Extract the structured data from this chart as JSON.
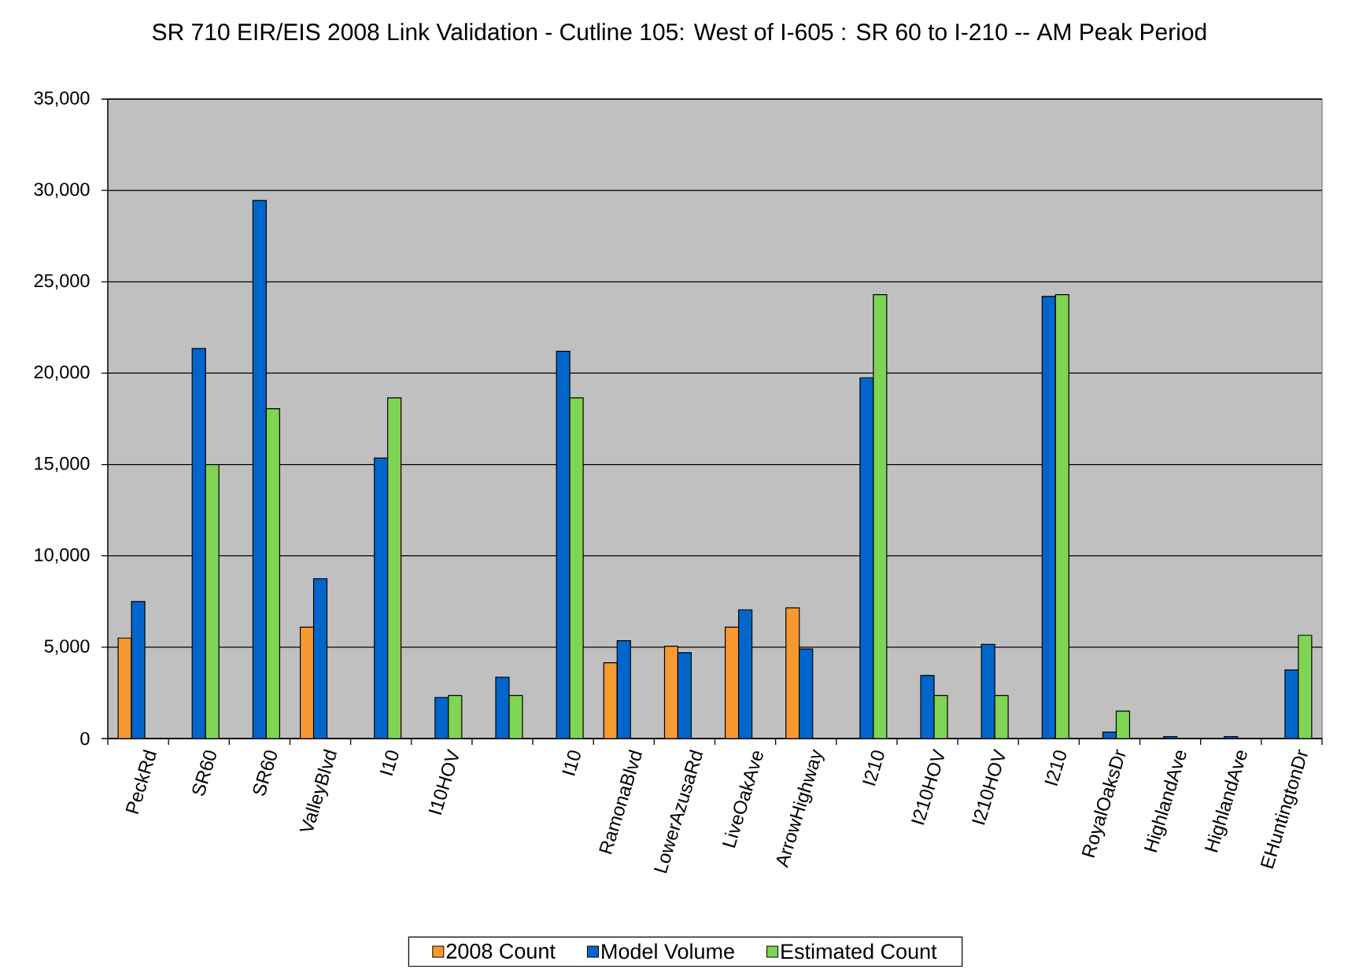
{
  "chart_data": {
    "type": "bar",
    "title": "SR 710 EIR/EIS 2008 Link Validation - Cutline 105: West of I-605 : SR 60 to I-210 -- AM Peak Period",
    "categories": [
      "PeckRd",
      "SR60",
      "SR60",
      "ValleyBlvd",
      "I10",
      "I10HOV",
      null,
      "I10",
      "RamonaBlvd",
      "LowerAzusaRd",
      "LiveOakAve",
      "ArrowHighway",
      "I210",
      "I210HOV",
      "I210HOV",
      "I210",
      "RoyalOaksDr",
      "HighlandAve",
      "HighlandAve",
      "EHuntingtonDr"
    ],
    "series": [
      {
        "name": "2008 Count",
        "color": "#f7992f",
        "values": [
          5500,
          null,
          null,
          6100,
          null,
          null,
          null,
          null,
          4150,
          5050,
          6100,
          7150,
          null,
          null,
          null,
          null,
          null,
          null,
          null,
          null
        ]
      },
      {
        "name": "Model Volume",
        "color": "#0066cc",
        "values": [
          7500,
          21350,
          29450,
          8750,
          15350,
          2250,
          3350,
          21200,
          5350,
          4700,
          7050,
          4900,
          19750,
          3450,
          5150,
          24200,
          350,
          100,
          100,
          3750
        ]
      },
      {
        "name": "Estimated Count",
        "color": "#80d454",
        "values": [
          null,
          15000,
          18050,
          null,
          18650,
          2350,
          2350,
          18650,
          null,
          null,
          null,
          null,
          24300,
          2350,
          2350,
          24300,
          1500,
          null,
          null,
          5650
        ]
      }
    ],
    "ylim": [
      0,
      35000
    ],
    "yticks": [
      0,
      {
        "value": 5000,
        "label": "5,000"
      },
      {
        "value": 10000,
        "label": "10,000"
      },
      {
        "value": 15000,
        "label": "15,000"
      },
      {
        "value": 20000,
        "label": "20,000"
      },
      {
        "value": 25000,
        "label": "25,000"
      },
      {
        "value": 30000,
        "label": "30,000"
      },
      {
        "value": 35000,
        "label": "35,000"
      }
    ],
    "grid": "y",
    "legend": "bottom"
  }
}
